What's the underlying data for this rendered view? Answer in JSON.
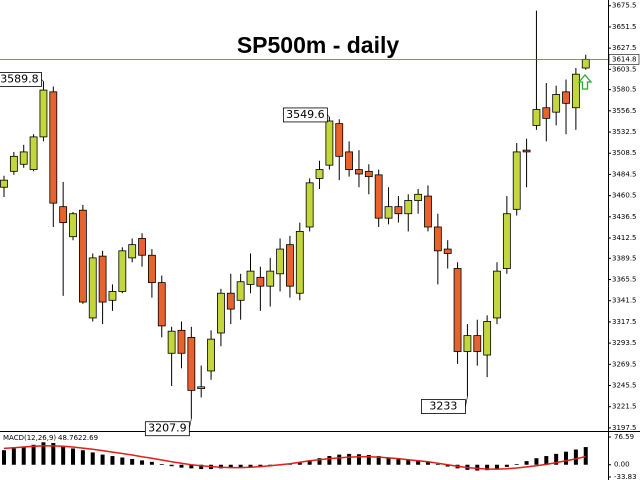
{
  "chart_data": {
    "type": "candlestick",
    "title": "SP500m - daily",
    "up_color": "#c3d63c",
    "down_color": "#e8622e",
    "price_line_color": "#5555cc",
    "open": [
      3470,
      3488,
      3496,
      3490,
      3527,
      3578,
      3448,
      3414,
      3444,
      3322,
      3392,
      3342,
      3352,
      3390,
      3412,
      3393,
      3362,
      3282,
      3308,
      3300,
      3242,
      3262,
      3305,
      3350,
      3342,
      3360,
      3368,
      3358,
      3372,
      3405,
      3350,
      3425,
      3480,
      3495,
      3542,
      3510,
      3490,
      3488,
      3484,
      3435,
      3448,
      3440,
      3455,
      3460,
      3425,
      3400,
      3378,
      3284,
      3302,
      3280,
      3322,
      3378,
      3445,
      3512,
      3540,
      3560,
      3555,
      3578,
      3560,
      3605
    ],
    "high": [
      3483,
      3510,
      3518,
      3530,
      3589.8,
      3584,
      3476,
      3442,
      3450,
      3395,
      3398,
      3360,
      3402,
      3412,
      3418,
      3400,
      3370,
      3312,
      3318,
      3312,
      3268,
      3308,
      3355,
      3372,
      3372,
      3395,
      3380,
      3390,
      3412,
      3415,
      3430,
      3480,
      3500,
      3549.6,
      3547,
      3522,
      3512,
      3496,
      3490,
      3470,
      3460,
      3462,
      3468,
      3472,
      3440,
      3410,
      3385,
      3315,
      3320,
      3325,
      3385,
      3460,
      3520,
      3525,
      3670,
      3588,
      3585,
      3592,
      3605,
      3620
    ],
    "low": [
      3459,
      3484,
      3492,
      3488,
      3522,
      3425,
      3347,
      3410,
      3338,
      3318,
      3315,
      3330,
      3350,
      3385,
      3380,
      3345,
      3300,
      3245,
      3265,
      3207.9,
      3232,
      3252,
      3290,
      3315,
      3320,
      3350,
      3330,
      3335,
      3352,
      3345,
      3342,
      3420,
      3468,
      3490,
      3478,
      3482,
      3470,
      3462,
      3425,
      3428,
      3430,
      3420,
      3440,
      3420,
      3360,
      3378,
      3270,
      3233.0,
      3268,
      3255,
      3315,
      3372,
      3438,
      3470,
      3535,
      3522,
      3540,
      3530,
      3535,
      3603
    ],
    "close": [
      3478,
      3505,
      3510,
      3527,
      3580,
      3452,
      3430,
      3440,
      3340,
      3390,
      3340,
      3352,
      3398,
      3405,
      3393,
      3362,
      3313,
      3307,
      3282,
      3240,
      3244,
      3298,
      3350,
      3332,
      3363,
      3375,
      3358,
      3375,
      3400,
      3358,
      3420,
      3475,
      3490,
      3545,
      3505,
      3490,
      3485,
      3482,
      3435,
      3448,
      3440,
      3455,
      3462,
      3425,
      3398,
      3395,
      3284,
      3302,
      3284,
      3318,
      3375,
      3440,
      3510,
      3510,
      3558,
      3548,
      3575,
      3565,
      3598,
      3614.8
    ],
    "ylim": [
      3194,
      3682
    ],
    "yticks": [
      3675.5,
      3651.5,
      3627.5,
      3603.5,
      3580.5,
      3556.5,
      3532.5,
      3508.5,
      3484.5,
      3460.5,
      3436.5,
      3412.5,
      3389.5,
      3365.5,
      3341.5,
      3317.5,
      3293.5,
      3269.5,
      3245.5,
      3221.5,
      3197.5
    ],
    "macd": {
      "title": "MACD(12,26,9)",
      "histogram_color": "#000000",
      "signal_color": "#e0201a",
      "ylim": [
        -33.83,
        76.59
      ],
      "yticks": [
        76.59,
        {
          "value": 0,
          "label": "0.00"
        },
        -33.83
      ],
      "histogram": [
        40,
        45,
        50,
        55,
        62,
        60,
        52,
        45,
        40,
        34,
        28,
        24,
        20,
        16,
        12,
        8,
        2,
        -4,
        -8,
        -10,
        -12,
        -12,
        -10,
        -9,
        -8,
        -7,
        -6,
        -4,
        -2,
        2,
        6,
        12,
        18,
        24,
        28,
        30,
        29,
        27,
        24,
        20,
        17,
        14,
        12,
        8,
        2,
        -5,
        -10,
        -14,
        -16,
        -15,
        -12,
        -6,
        2,
        10,
        18,
        24,
        30,
        36,
        42,
        48.76
      ],
      "signal": [
        45,
        47,
        49,
        51,
        52,
        52,
        51,
        49,
        46,
        43,
        39,
        35,
        31,
        27,
        22,
        18,
        13,
        8,
        4,
        0,
        -3,
        -5,
        -7,
        -8,
        -8,
        -7,
        -5,
        -3,
        0,
        3,
        7,
        11,
        14,
        17,
        19,
        21,
        22,
        22,
        21,
        19,
        17,
        14,
        11,
        8,
        4,
        0,
        -4,
        -8,
        -10,
        -12,
        -12,
        -11,
        -9,
        -6,
        -3,
        1,
        6,
        11,
        16,
        22.69
      ]
    }
  }
}
